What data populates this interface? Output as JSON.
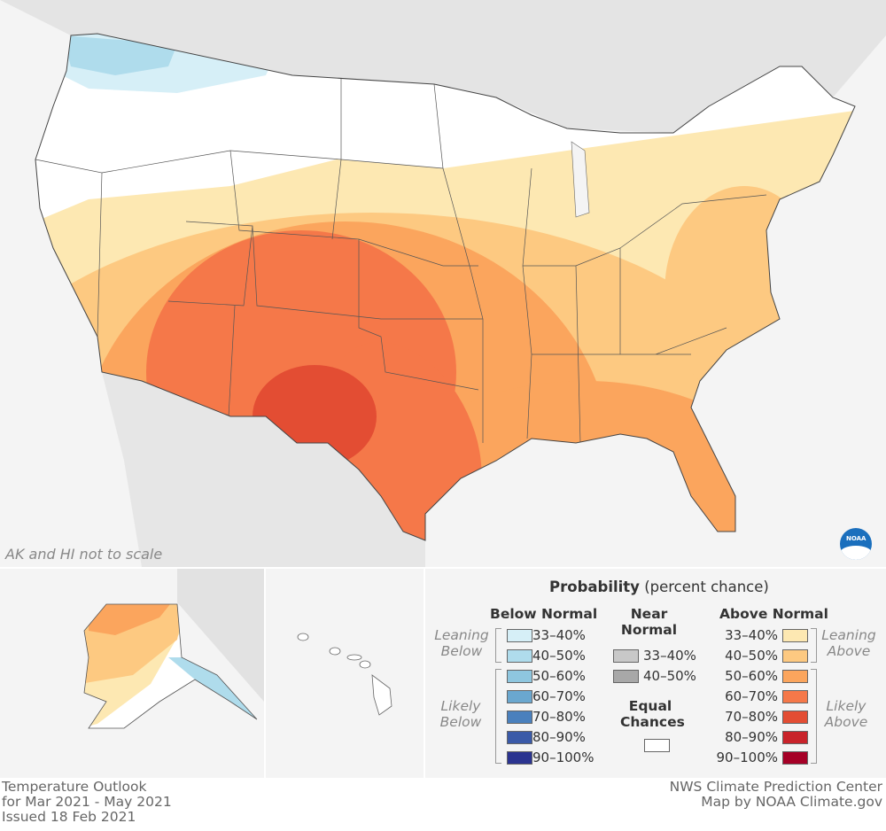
{
  "map": {
    "scale_note": "AK and HI not to scale",
    "logo": "NOAA"
  },
  "legend": {
    "title_bold": "Probability",
    "title_rest": "(percent chance)",
    "below": {
      "heading": "Below Normal",
      "leaning": "Leaning Below",
      "likely": "Likely Below",
      "items": [
        {
          "label": "33–40%",
          "color": "#d6eff7"
        },
        {
          "label": "40–50%",
          "color": "#afdcec"
        },
        {
          "label": "50–60%",
          "color": "#8ec6df"
        },
        {
          "label": "60–70%",
          "color": "#6aa7cf"
        },
        {
          "label": "70–80%",
          "color": "#4a80bd"
        },
        {
          "label": "80–90%",
          "color": "#3a5aa8"
        },
        {
          "label": "90–100%",
          "color": "#2b3490"
        }
      ]
    },
    "near": {
      "heading": "Near Normal",
      "items": [
        {
          "label": "33–40%",
          "color": "#c8c8c8"
        },
        {
          "label": "40–50%",
          "color": "#a8a8a8"
        }
      ]
    },
    "equal": {
      "heading": "Equal Chances",
      "color": "#ffffff"
    },
    "above": {
      "heading": "Above Normal",
      "leaning": "Leaning Above",
      "likely": "Likely Above",
      "items": [
        {
          "label": "33–40%",
          "color": "#fde8b2"
        },
        {
          "label": "40–50%",
          "color": "#fdc981"
        },
        {
          "label": "50–60%",
          "color": "#fba55d"
        },
        {
          "label": "60–70%",
          "color": "#f57849"
        },
        {
          "label": "70–80%",
          "color": "#e34d33"
        },
        {
          "label": "80–90%",
          "color": "#c9232a"
        },
        {
          "label": "90–100%",
          "color": "#a50026"
        }
      ]
    }
  },
  "footer": {
    "left": [
      "Temperature Outlook",
      "for Mar 2021 - May 2021",
      "Issued 18 Feb 2021"
    ],
    "right": [
      "NWS Climate Prediction Center",
      "Map by NOAA Climate.gov"
    ]
  }
}
